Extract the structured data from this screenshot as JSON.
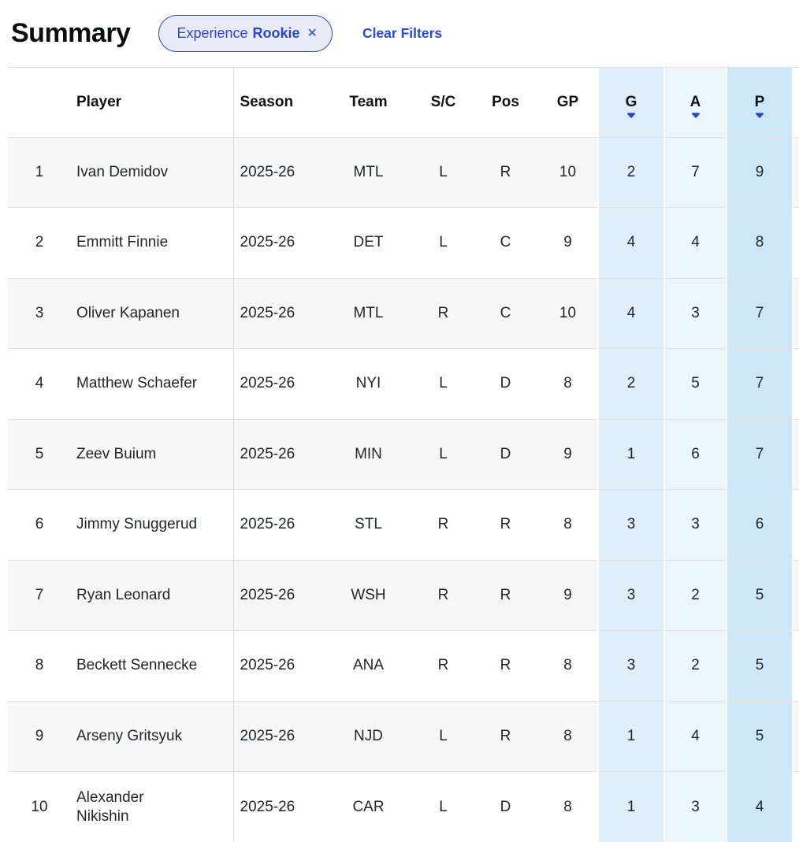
{
  "header": {
    "title": "Summary",
    "filter_chip": {
      "label": "Experience",
      "value": "Rookie",
      "close_icon": "✕"
    },
    "clear_filters_label": "Clear Filters"
  },
  "colors": {
    "accent_blue": "#2a49d0",
    "chip_bg": "#e9ecf8",
    "goals_col_bg": "#ddeefa",
    "assists_col_bg": "#eaf5fc",
    "points_col_bg": "#cee7f7",
    "row_stripe_bg": "#f7f7f7"
  },
  "table": {
    "columns": [
      {
        "key": "rank",
        "label": "",
        "align": "center",
        "sortable": false,
        "highlight": ""
      },
      {
        "key": "player",
        "label": "Player",
        "align": "left",
        "sortable": false,
        "highlight": ""
      },
      {
        "key": "season",
        "label": "Season",
        "align": "left",
        "sortable": false,
        "highlight": ""
      },
      {
        "key": "team",
        "label": "Team",
        "align": "center",
        "sortable": false,
        "highlight": ""
      },
      {
        "key": "sc",
        "label": "S/C",
        "align": "center",
        "sortable": false,
        "highlight": ""
      },
      {
        "key": "pos",
        "label": "Pos",
        "align": "center",
        "sortable": false,
        "highlight": ""
      },
      {
        "key": "gp",
        "label": "GP",
        "align": "center",
        "sortable": false,
        "highlight": ""
      },
      {
        "key": "g",
        "label": "G",
        "align": "center",
        "sortable": true,
        "highlight": "g"
      },
      {
        "key": "a",
        "label": "A",
        "align": "center",
        "sortable": true,
        "highlight": "a"
      },
      {
        "key": "p",
        "label": "P",
        "align": "center",
        "sortable": true,
        "highlight": "p"
      },
      {
        "key": "next",
        "label": "",
        "align": "center",
        "sortable": false,
        "highlight": ""
      }
    ],
    "rows": [
      {
        "rank": "1",
        "player": "Ivan Demidov",
        "season": "2025-26",
        "team": "MTL",
        "sc": "L",
        "pos": "R",
        "gp": "10",
        "g": "2",
        "a": "7",
        "p": "9",
        "next": ""
      },
      {
        "rank": "2",
        "player": "Emmitt Finnie",
        "season": "2025-26",
        "team": "DET",
        "sc": "L",
        "pos": "C",
        "gp": "9",
        "g": "4",
        "a": "4",
        "p": "8",
        "next": ""
      },
      {
        "rank": "3",
        "player": "Oliver Kapanen",
        "season": "2025-26",
        "team": "MTL",
        "sc": "R",
        "pos": "C",
        "gp": "10",
        "g": "4",
        "a": "3",
        "p": "7",
        "next": ""
      },
      {
        "rank": "4",
        "player": "Matthew Schaefer",
        "season": "2025-26",
        "team": "NYI",
        "sc": "L",
        "pos": "D",
        "gp": "8",
        "g": "2",
        "a": "5",
        "p": "7",
        "next": ""
      },
      {
        "rank": "5",
        "player": "Zeev Buium",
        "season": "2025-26",
        "team": "MIN",
        "sc": "L",
        "pos": "D",
        "gp": "9",
        "g": "1",
        "a": "6",
        "p": "7",
        "next": ""
      },
      {
        "rank": "6",
        "player": "Jimmy Snuggerud",
        "season": "2025-26",
        "team": "STL",
        "sc": "R",
        "pos": "R",
        "gp": "8",
        "g": "3",
        "a": "3",
        "p": "6",
        "next": ""
      },
      {
        "rank": "7",
        "player": "Ryan Leonard",
        "season": "2025-26",
        "team": "WSH",
        "sc": "R",
        "pos": "R",
        "gp": "9",
        "g": "3",
        "a": "2",
        "p": "5",
        "next": ""
      },
      {
        "rank": "8",
        "player": "Beckett Sennecke",
        "season": "2025-26",
        "team": "ANA",
        "sc": "R",
        "pos": "R",
        "gp": "8",
        "g": "3",
        "a": "2",
        "p": "5",
        "next": ""
      },
      {
        "rank": "9",
        "player": "Arseny Gritsyuk",
        "season": "2025-26",
        "team": "NJD",
        "sc": "L",
        "pos": "R",
        "gp": "8",
        "g": "1",
        "a": "4",
        "p": "5",
        "next": ""
      },
      {
        "rank": "10",
        "player": "Alexander\nNikishin",
        "season": "2025-26",
        "team": "CAR",
        "sc": "L",
        "pos": "D",
        "gp": "8",
        "g": "1",
        "a": "3",
        "p": "4",
        "next": ""
      }
    ]
  }
}
